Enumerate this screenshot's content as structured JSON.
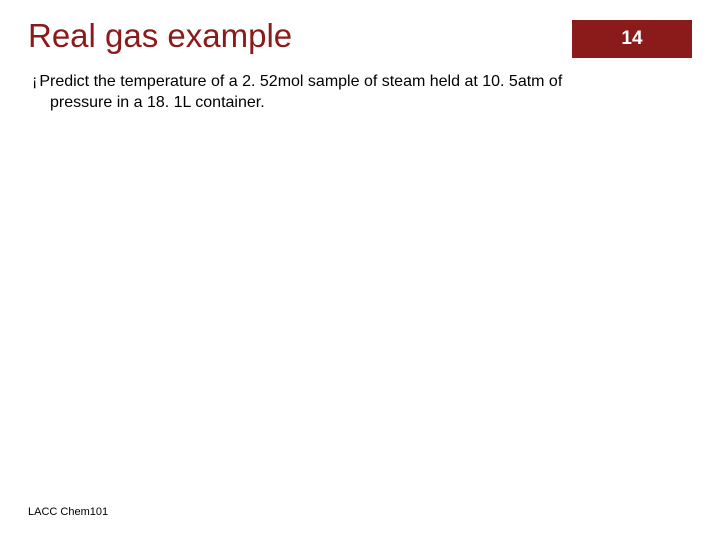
{
  "slide": {
    "title": "Real gas example",
    "pageNumber": "14",
    "bulletChar": "¡",
    "bodyLine1": "Predict the temperature of a 2. 52mol sample of steam held at 10. 5atm of",
    "bodyLine2": "pressure in a 18. 1L container.",
    "footer": "LACC Chem101"
  },
  "colors": {
    "titleColor": "#8b1a1a",
    "badgeBg": "#8b1a1a",
    "badgeText": "#ffffff",
    "bodyText": "#000000",
    "background": "#ffffff"
  },
  "fonts": {
    "titleSize": 33,
    "badgeSize": 19,
    "bodySize": 16,
    "footerSize": 11
  }
}
